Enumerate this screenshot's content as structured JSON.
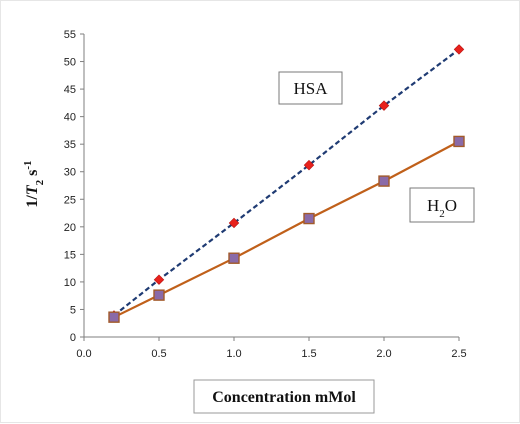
{
  "chart_data": {
    "type": "line",
    "title": "",
    "xlabel": "Concentration mMol",
    "ylabel": "1/T2 s-1",
    "ylabel_parts": {
      "prefix": "1/",
      "var": "T",
      "sub": "2",
      "space_unit": " s",
      "sup": "-1"
    },
    "x": [
      0.2,
      0.5,
      1.0,
      1.5,
      2.0,
      2.5
    ],
    "xlim": [
      0.0,
      2.5
    ],
    "ylim": [
      0,
      55
    ],
    "xticks": [
      "0.0",
      "0.5",
      "1.0",
      "1.5",
      "2.0",
      "2.5"
    ],
    "yticks": [
      "0",
      "5",
      "10",
      "15",
      "20",
      "25",
      "30",
      "35",
      "40",
      "45",
      "50",
      "55"
    ],
    "grid": false,
    "series": [
      {
        "name": "HSA",
        "values": [
          3.9,
          10.4,
          20.7,
          31.2,
          42.0,
          52.2
        ],
        "line_color": "#1f3b73",
        "line_style": "dashed",
        "marker": "diamond",
        "marker_color": "#e8211c"
      },
      {
        "name": "H2O",
        "name_parts": {
          "base": "H",
          "sub": "2",
          "rest": "O"
        },
        "values": [
          3.6,
          7.6,
          14.3,
          21.5,
          28.3,
          35.5
        ],
        "line_color": "#c0601a",
        "line_style": "solid",
        "marker": "square",
        "marker_color": "#8a6aa8"
      }
    ]
  }
}
